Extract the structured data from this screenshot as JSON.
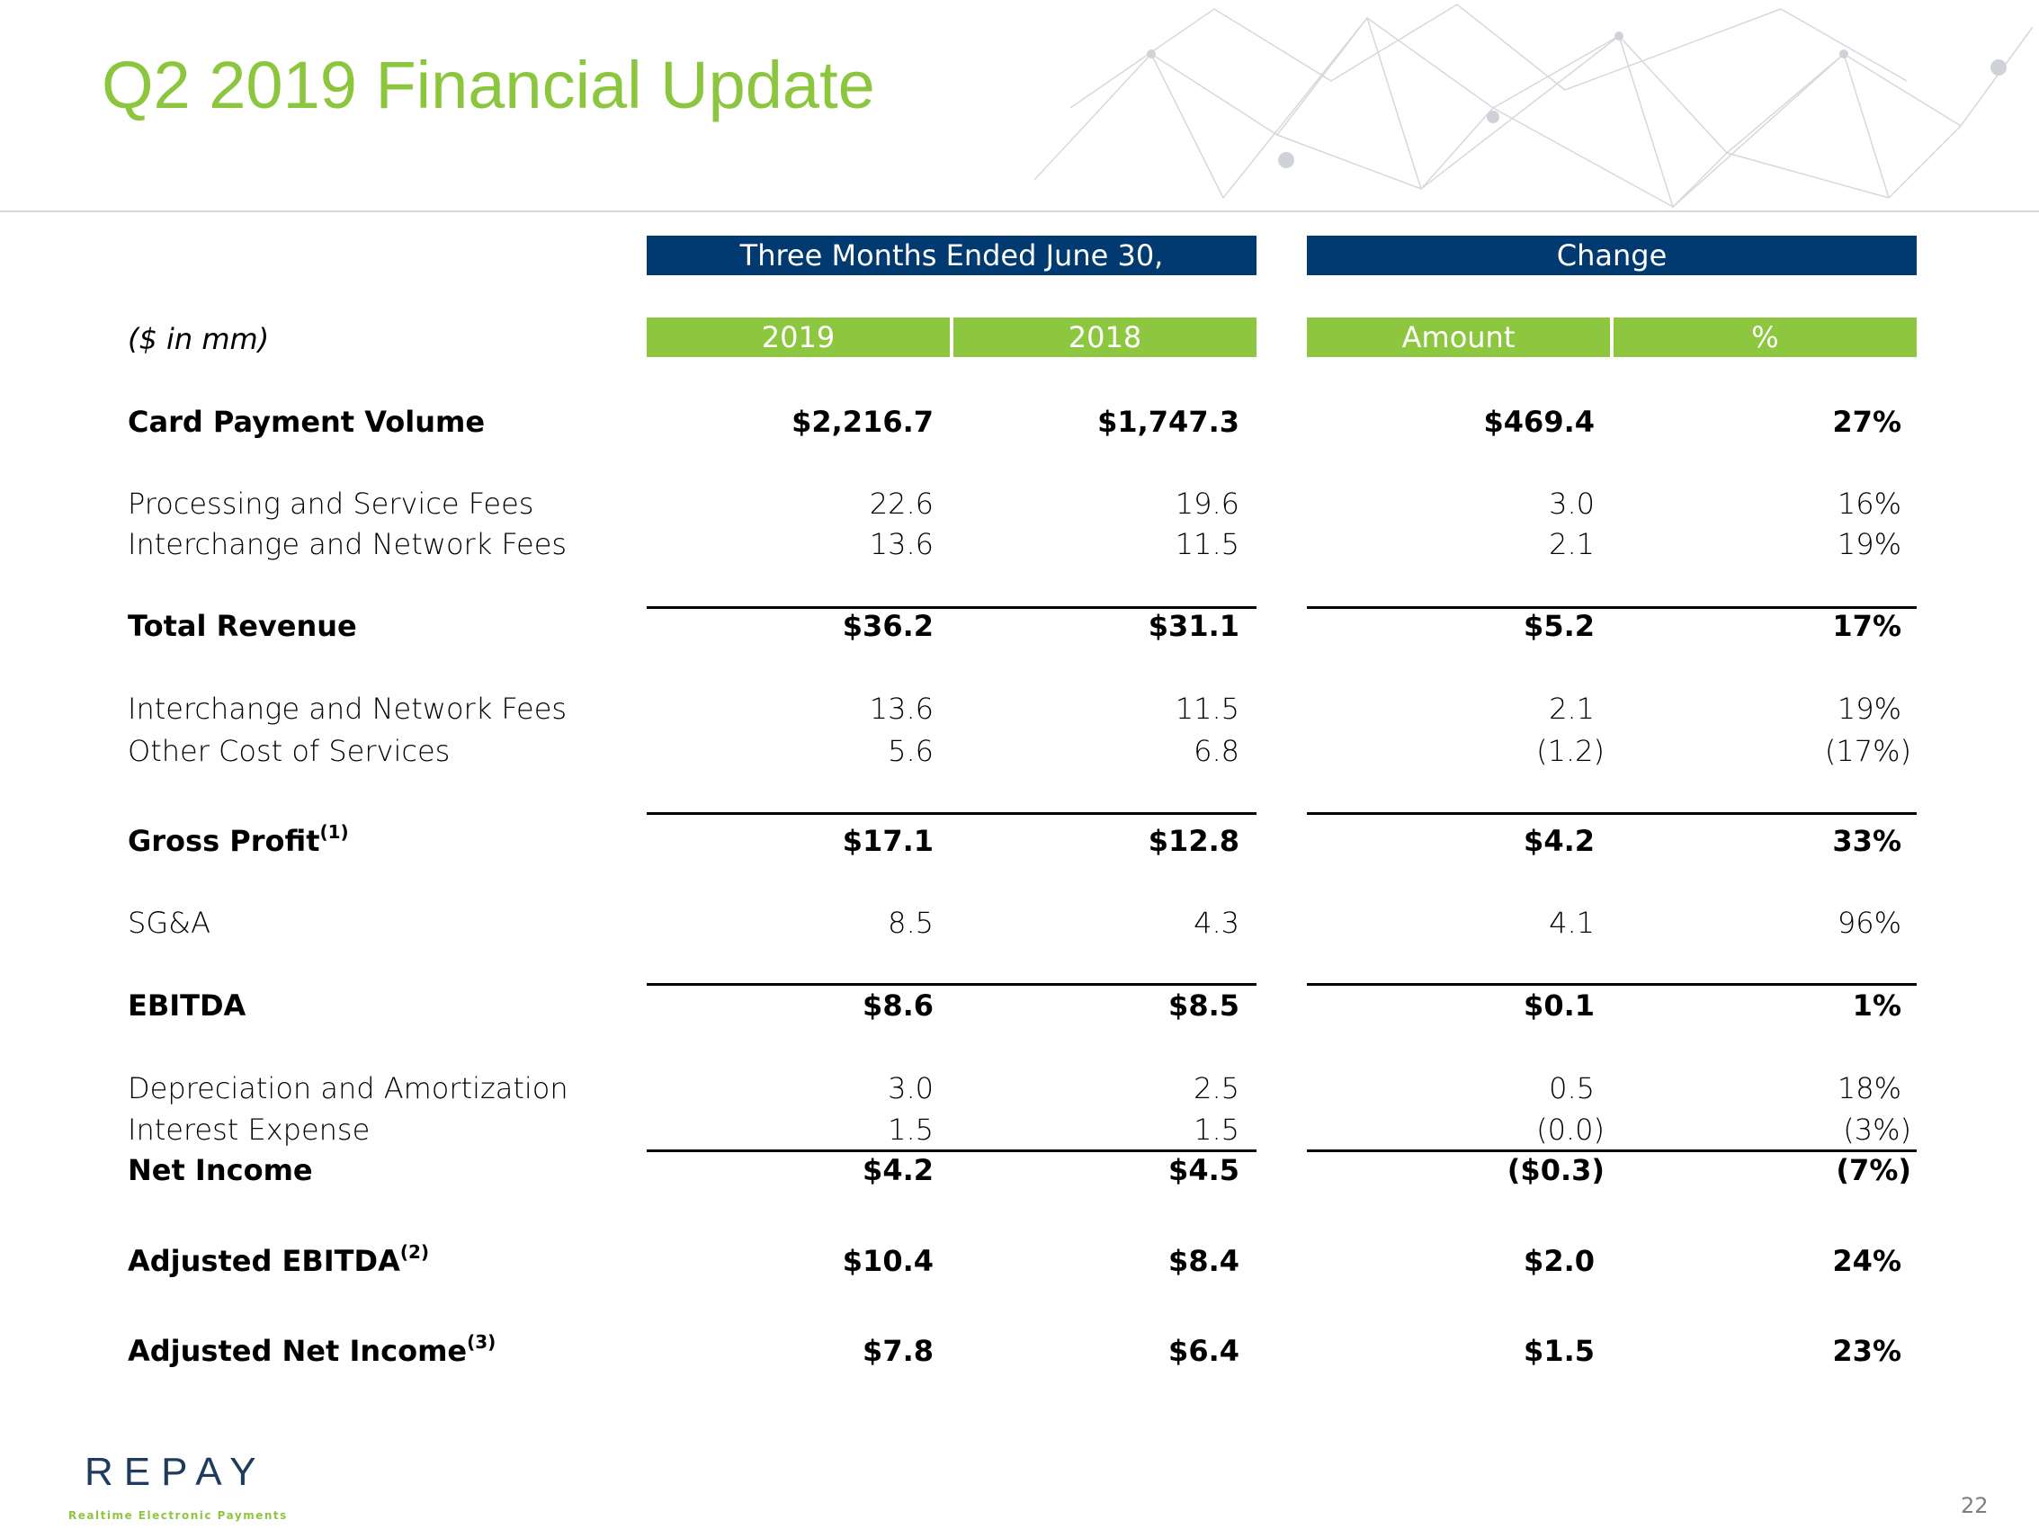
{
  "header": {
    "title": "Q2 2019 Financial Update"
  },
  "table": {
    "group_headers": [
      "Three Months Ended June 30,",
      "Change"
    ],
    "unit_note": "($ in mm)",
    "columns": [
      "2019",
      "2018",
      "Amount",
      "%"
    ],
    "rows": [
      {
        "label": "Card Payment Volume",
        "values": [
          "$2,216.7",
          "$1,747.3",
          "$469.4",
          "27%"
        ]
      },
      {
        "label": "Processing and Service Fees",
        "values": [
          "22.6",
          "19.6",
          "3.0",
          "16%"
        ]
      },
      {
        "label": "Interchange and Network Fees",
        "values": [
          "13.6",
          "11.5",
          "2.1",
          "19%"
        ]
      },
      {
        "label": "Total Revenue",
        "values": [
          "$36.2",
          "$31.1",
          "$5.2",
          "17%"
        ]
      },
      {
        "label": "Interchange and Network Fees",
        "values": [
          "13.6",
          "11.5",
          "2.1",
          "19%"
        ]
      },
      {
        "label": "Other Cost of Services",
        "values": [
          "5.6",
          "6.8",
          "(1.2)",
          "(17%)"
        ]
      },
      {
        "label": "Gross Profit",
        "note": "(1)",
        "values": [
          "$17.1",
          "$12.8",
          "$4.2",
          "33%"
        ]
      },
      {
        "label": "SG&A",
        "values": [
          "8.5",
          "4.3",
          "4.1",
          "96%"
        ]
      },
      {
        "label": "EBITDA",
        "values": [
          "$8.6",
          "$8.5",
          "$0.1",
          "1%"
        ]
      },
      {
        "label": "Depreciation and Amortization",
        "values": [
          "3.0",
          "2.5",
          "0.5",
          "18%"
        ]
      },
      {
        "label": "Interest Expense",
        "values": [
          "1.5",
          "1.5",
          "(0.0)",
          "(3%)"
        ]
      },
      {
        "label": "Net Income",
        "values": [
          "$4.2",
          "$4.5",
          "($0.3)",
          "(7%)"
        ]
      },
      {
        "label": "Adjusted EBITDA",
        "note": "(2)",
        "values": [
          "$10.4",
          "$8.4",
          "$2.0",
          "24%"
        ]
      },
      {
        "label": "Adjusted Net Income",
        "note": "(3)",
        "values": [
          "$7.8",
          "$6.4",
          "$1.5",
          "23%"
        ]
      }
    ]
  },
  "footer": {
    "logo": "REPAY",
    "tagline": "Realtime Electronic Payments",
    "page_number": "22"
  }
}
